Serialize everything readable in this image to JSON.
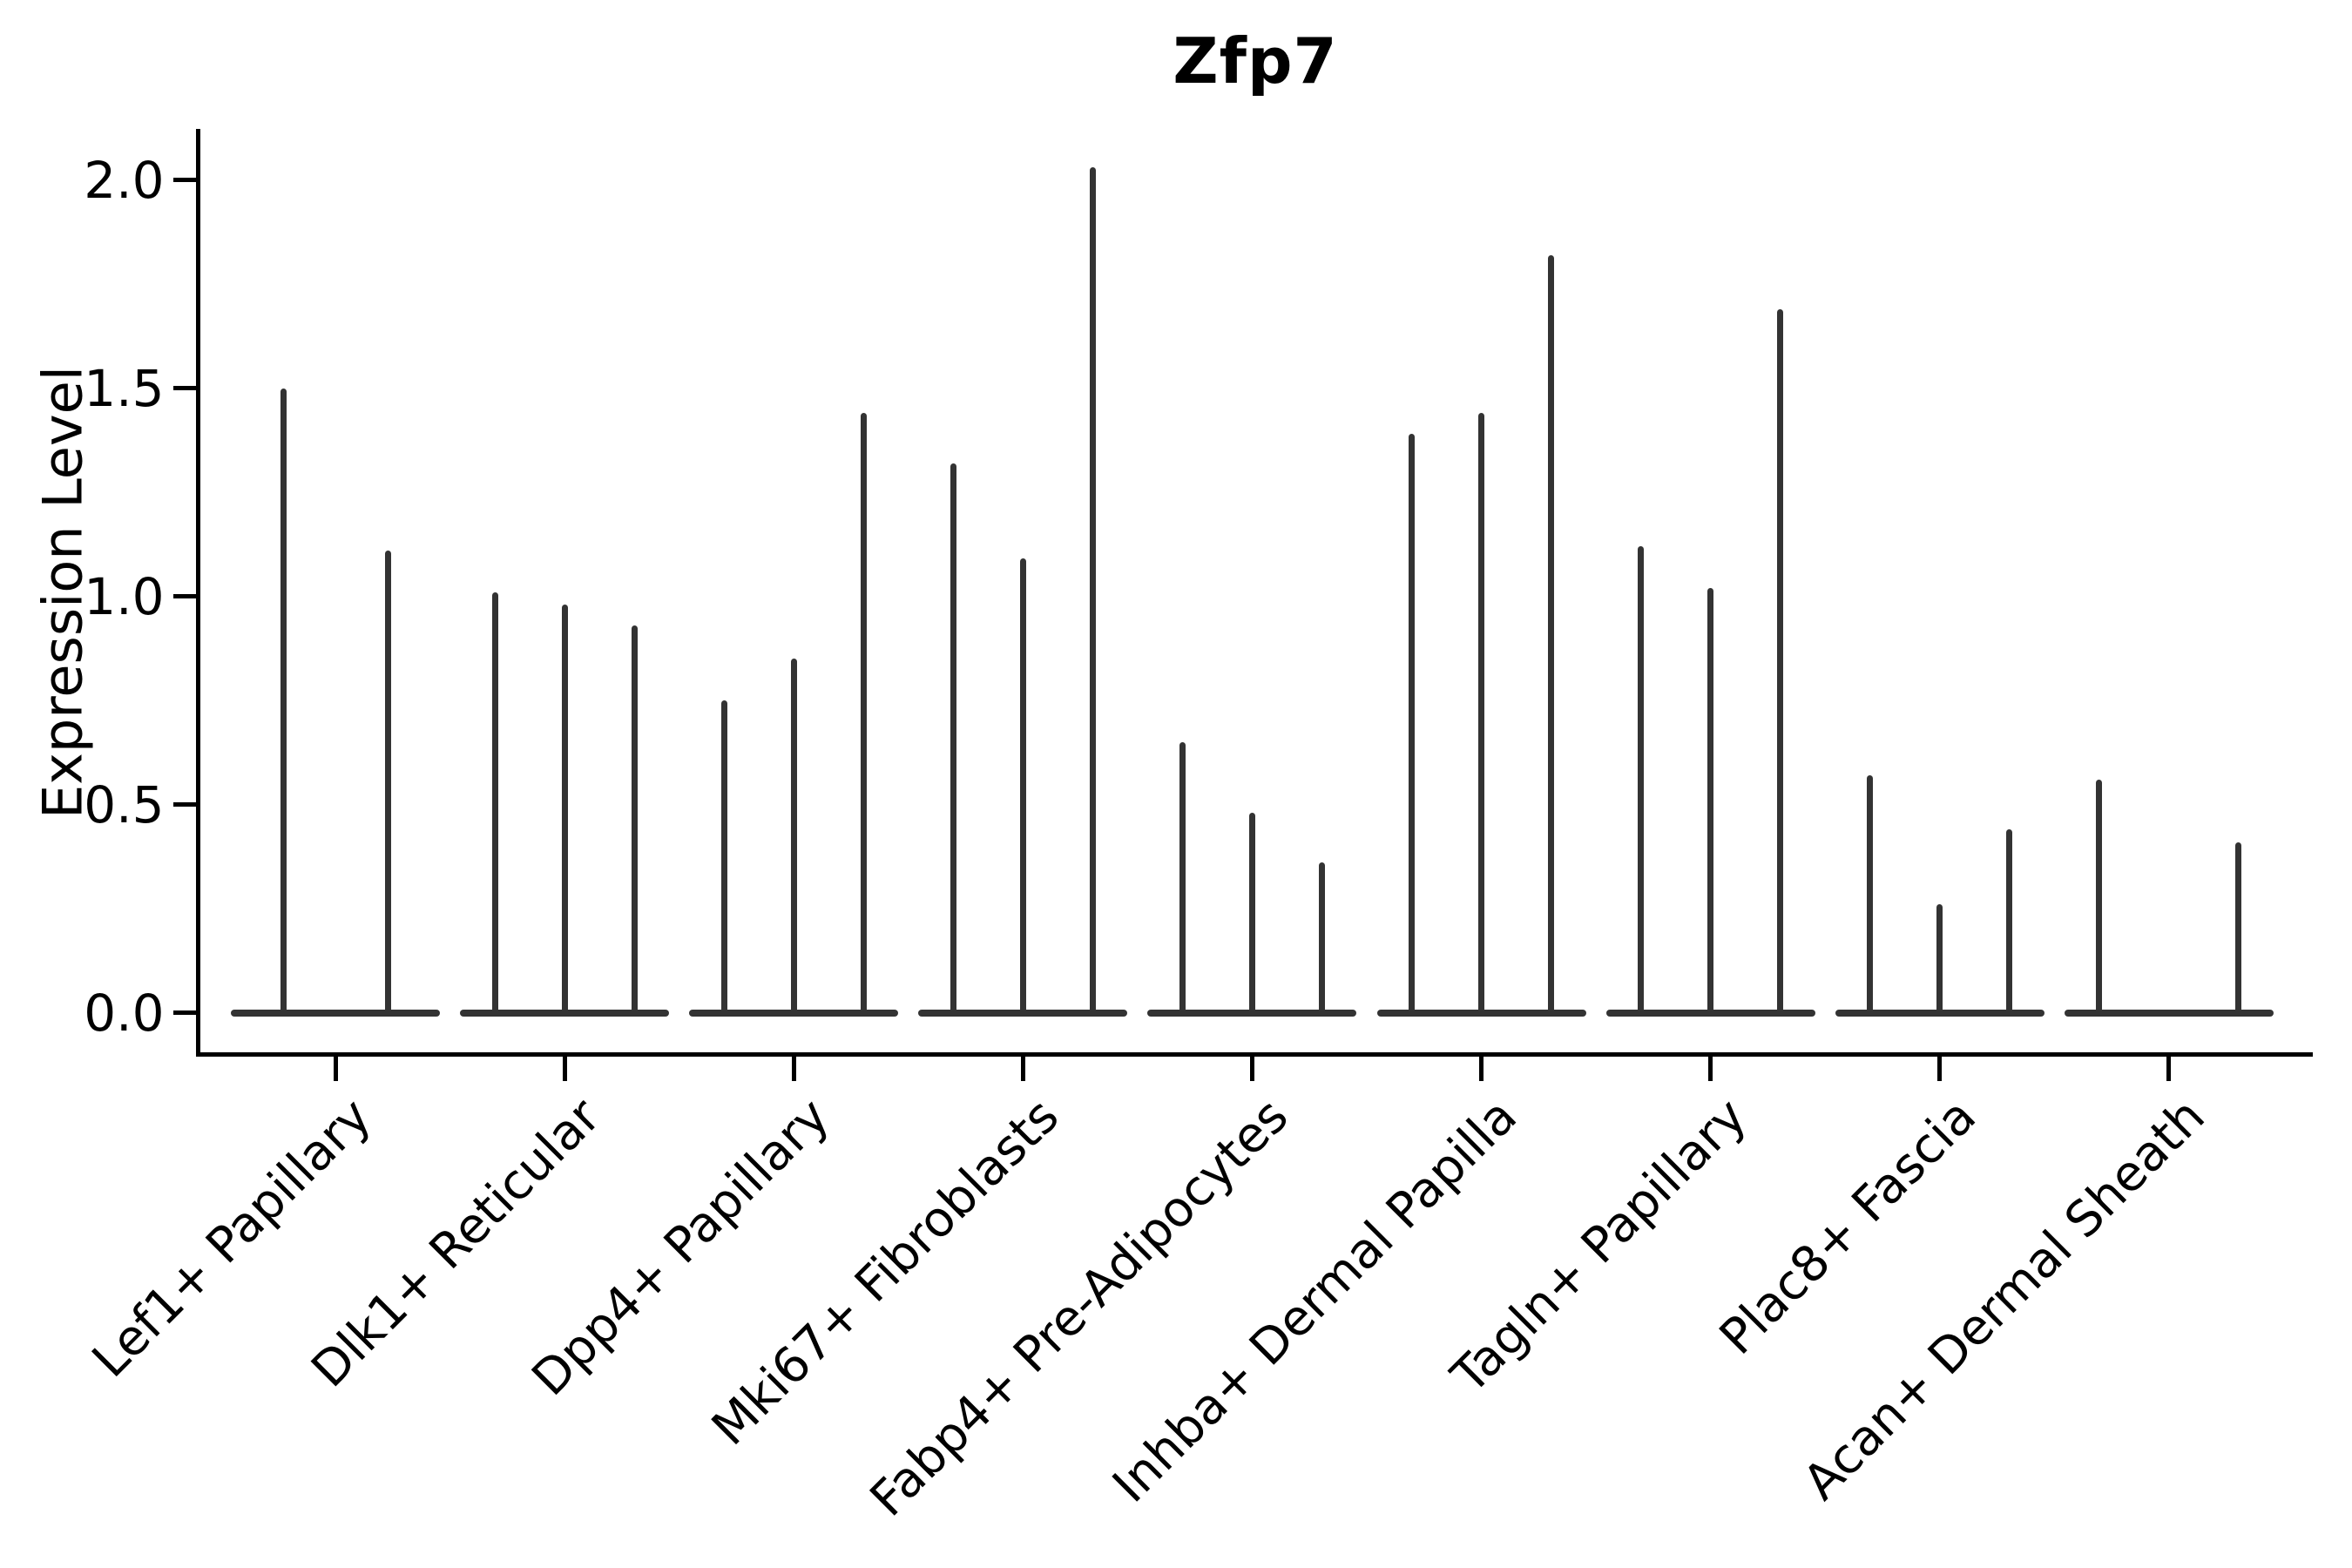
{
  "title": "Zfp7",
  "y_axis": {
    "label": "Expression Level",
    "tick_labels": [
      "0.0",
      "0.5",
      "1.0",
      "1.5",
      "2.0"
    ]
  },
  "chart_data": {
    "type": "violin",
    "title": "Zfp7",
    "xlabel": "",
    "ylabel": "Expression Level",
    "ylim": [
      0,
      2.12
    ],
    "yticks": [
      0.0,
      0.5,
      1.0,
      1.5,
      2.0
    ],
    "grid": false,
    "legend": null,
    "categories": [
      "Lef1+ Papillary",
      "Dlk1+ Reticular",
      "Dpp4+ Papillary",
      "Mki67+ Fibroblasts",
      "Fabp4+ Pre-Adipocytes",
      "Inhba+ Dermal Papilla",
      "Tagln+ Papillary",
      "Plac8+ Fascia",
      "Acan+ Dermal Sheath"
    ],
    "groups": [
      {
        "category": "Lef1+ Papillary",
        "violin_max": [
          1.5,
          1.11
        ]
      },
      {
        "category": "Dlk1+ Reticular",
        "violin_max": [
          1.01,
          0.98,
          0.93
        ]
      },
      {
        "category": "Dpp4+ Papillary",
        "violin_max": [
          0.75,
          0.85,
          1.44
        ]
      },
      {
        "category": "Mki67+ Fibroblasts",
        "violin_max": [
          1.32,
          1.09,
          2.03
        ]
      },
      {
        "category": "Fabp4+ Pre-Adipocytes",
        "violin_max": [
          0.65,
          0.48,
          0.36
        ]
      },
      {
        "category": "Inhba+ Dermal Papilla",
        "violin_max": [
          1.39,
          1.44,
          1.82
        ]
      },
      {
        "category": "Tagln+ Papillary",
        "violin_max": [
          1.12,
          1.02,
          1.69
        ]
      },
      {
        "category": "Plac8+ Fascia",
        "violin_max": [
          0.57,
          0.26,
          0.44
        ]
      },
      {
        "category": "Acan+ Dermal Sheath",
        "violin_max": [
          0.56,
          0,
          0.41
        ]
      }
    ],
    "colors": {
      "violin": "#333333",
      "axis": "#000000",
      "text": "#000000",
      "background": "#ffffff"
    }
  }
}
